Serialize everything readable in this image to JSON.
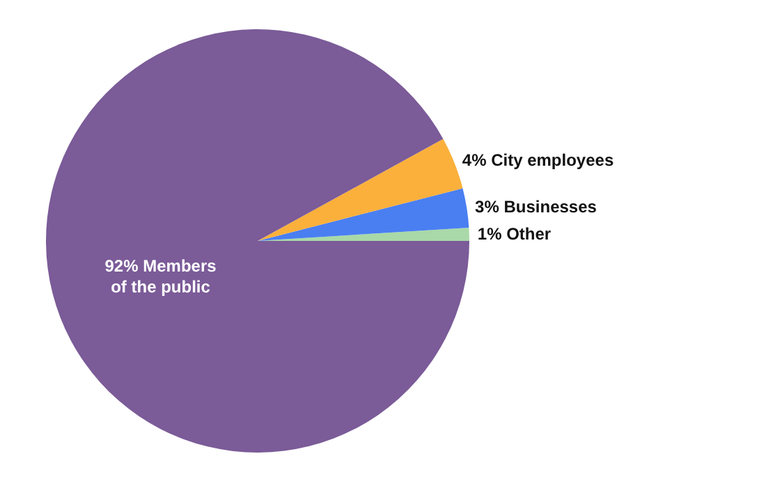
{
  "chart_data": {
    "type": "pie",
    "categories": [
      "Other",
      "Businesses",
      "City employees",
      "Members of the public"
    ],
    "values": [
      1,
      3,
      4,
      92
    ],
    "colors": [
      "#a9d9a8",
      "#4a7ff2",
      "#fbb03b",
      "#7b5b98"
    ],
    "value_labels": [
      "1%",
      "3%",
      "4%",
      "92%"
    ]
  }
}
